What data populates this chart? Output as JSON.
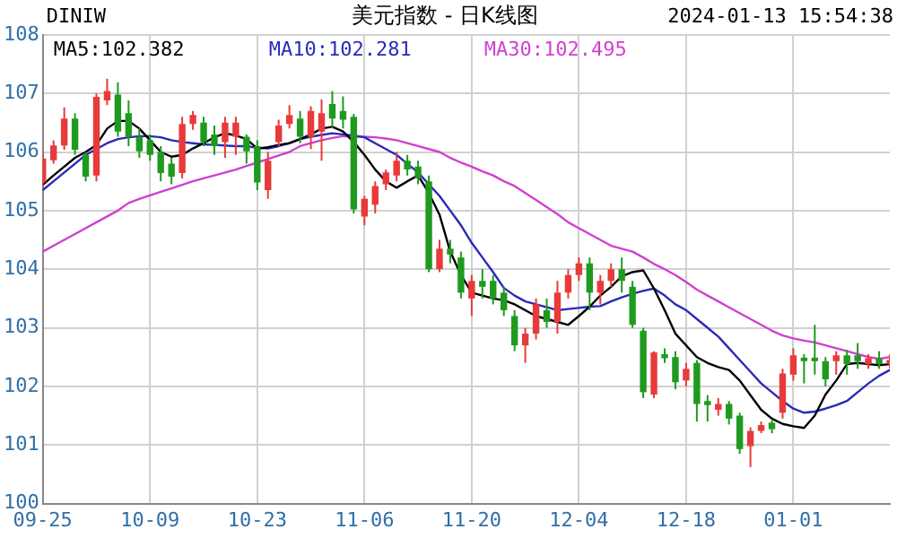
{
  "chart_data": {
    "type": "candlestick",
    "title": "美元指数 - 日K线图",
    "annotations": [
      "DINIW",
      "2024-01-13 15:54:38"
    ],
    "categories": [
      "09-25",
      null,
      null,
      null,
      null,
      null,
      null,
      null,
      null,
      null,
      "10-09",
      null,
      null,
      null,
      null,
      null,
      null,
      null,
      null,
      null,
      "10-23",
      null,
      null,
      null,
      null,
      null,
      null,
      null,
      null,
      null,
      "11-06",
      null,
      null,
      null,
      null,
      null,
      null,
      null,
      null,
      null,
      "11-20",
      null,
      null,
      null,
      null,
      null,
      null,
      null,
      null,
      null,
      "12-04",
      null,
      null,
      null,
      null,
      null,
      null,
      null,
      null,
      null,
      "12-18",
      null,
      null,
      null,
      null,
      null,
      null,
      null,
      null,
      null,
      "01-01",
      null,
      null,
      null,
      null,
      null,
      null,
      null,
      null,
      null
    ],
    "ohlc": [
      [
        105.48,
        106.01,
        105.39,
        105.89
      ],
      [
        105.86,
        106.2,
        105.8,
        106.11
      ],
      [
        106.11,
        106.76,
        106.04,
        106.57
      ],
      [
        106.57,
        106.66,
        105.95,
        106.04
      ],
      [
        105.95,
        106.0,
        105.5,
        105.58
      ],
      [
        105.6,
        107.0,
        105.5,
        106.94
      ],
      [
        106.88,
        107.25,
        106.8,
        107.04
      ],
      [
        106.98,
        107.19,
        106.26,
        106.35
      ],
      [
        106.66,
        106.88,
        106.1,
        106.26
      ],
      [
        106.26,
        106.4,
        105.9,
        106.01
      ],
      [
        106.2,
        106.3,
        105.85,
        105.95
      ],
      [
        106.0,
        106.1,
        105.5,
        105.64
      ],
      [
        105.8,
        105.9,
        105.45,
        105.58
      ],
      [
        105.64,
        106.6,
        105.55,
        106.48
      ],
      [
        106.48,
        106.7,
        106.38,
        106.63
      ],
      [
        106.5,
        106.6,
        106.1,
        106.17
      ],
      [
        106.3,
        106.45,
        105.95,
        106.1
      ],
      [
        106.17,
        106.6,
        105.9,
        106.5
      ],
      [
        106.26,
        106.6,
        105.95,
        106.5
      ],
      [
        106.26,
        106.3,
        105.8,
        106.01
      ],
      [
        106.1,
        106.2,
        105.35,
        105.48
      ],
      [
        105.35,
        106.0,
        105.2,
        105.85
      ],
      [
        106.17,
        106.55,
        106.1,
        106.45
      ],
      [
        106.48,
        106.8,
        106.4,
        106.63
      ],
      [
        106.57,
        106.7,
        106.15,
        106.26
      ],
      [
        106.26,
        106.78,
        106.05,
        106.7
      ],
      [
        106.35,
        106.9,
        105.85,
        106.66
      ],
      [
        106.82,
        107.04,
        106.4,
        106.57
      ],
      [
        106.7,
        106.95,
        106.4,
        106.55
      ],
      [
        106.6,
        106.65,
        104.95,
        105.02
      ],
      [
        104.9,
        105.25,
        104.75,
        105.2
      ],
      [
        105.1,
        105.5,
        104.95,
        105.42
      ],
      [
        105.45,
        105.7,
        105.35,
        105.65
      ],
      [
        105.6,
        106.0,
        105.5,
        105.85
      ],
      [
        105.85,
        105.95,
        105.6,
        105.7
      ],
      [
        105.75,
        105.85,
        105.45,
        105.55
      ],
      [
        105.5,
        105.6,
        103.95,
        104.0
      ],
      [
        104.0,
        104.5,
        103.95,
        104.35
      ],
      [
        104.35,
        104.5,
        104.1,
        104.25
      ],
      [
        104.2,
        104.3,
        103.5,
        103.6
      ],
      [
        103.5,
        103.9,
        103.2,
        103.8
      ],
      [
        103.8,
        104.0,
        103.5,
        103.7
      ],
      [
        103.8,
        103.9,
        103.4,
        103.5
      ],
      [
        103.6,
        103.7,
        103.2,
        103.3
      ],
      [
        103.2,
        103.3,
        102.6,
        102.7
      ],
      [
        102.7,
        103.0,
        102.4,
        102.9
      ],
      [
        102.9,
        103.5,
        102.8,
        103.4
      ],
      [
        103.3,
        103.5,
        103.0,
        103.1
      ],
      [
        103.1,
        103.8,
        102.9,
        103.6
      ],
      [
        103.6,
        104.0,
        103.5,
        103.9
      ],
      [
        103.9,
        104.2,
        103.8,
        104.1
      ],
      [
        104.1,
        104.2,
        103.3,
        103.6
      ],
      [
        103.6,
        103.9,
        103.4,
        103.8
      ],
      [
        103.8,
        104.1,
        103.7,
        104.0
      ],
      [
        104.0,
        104.2,
        103.6,
        103.8
      ],
      [
        103.7,
        103.8,
        103.0,
        103.05
      ],
      [
        102.95,
        103.0,
        101.8,
        101.9
      ],
      [
        101.86,
        102.6,
        101.8,
        102.58
      ],
      [
        102.55,
        102.65,
        102.4,
        102.48
      ],
      [
        102.5,
        102.6,
        101.95,
        102.07
      ],
      [
        102.1,
        102.4,
        102.0,
        102.3
      ],
      [
        102.4,
        102.45,
        101.4,
        101.7
      ],
      [
        101.75,
        101.85,
        101.4,
        101.68
      ],
      [
        101.6,
        101.8,
        101.5,
        101.7
      ],
      [
        101.7,
        101.75,
        101.35,
        101.45
      ],
      [
        101.5,
        101.55,
        100.85,
        100.93
      ],
      [
        100.98,
        101.3,
        100.62,
        101.24
      ],
      [
        101.24,
        101.4,
        101.2,
        101.34
      ],
      [
        101.38,
        101.42,
        101.2,
        101.27
      ],
      [
        101.55,
        102.3,
        101.45,
        102.22
      ],
      [
        102.2,
        102.65,
        102.1,
        102.53
      ],
      [
        102.49,
        102.55,
        102.05,
        102.43
      ],
      [
        102.49,
        103.05,
        102.2,
        102.43
      ],
      [
        102.43,
        102.5,
        102.0,
        102.12
      ],
      [
        102.43,
        102.6,
        102.2,
        102.53
      ],
      [
        102.53,
        102.62,
        102.2,
        102.38
      ],
      [
        102.53,
        102.74,
        102.3,
        102.43
      ],
      [
        102.38,
        102.55,
        102.3,
        102.48
      ],
      [
        102.48,
        102.6,
        102.3,
        102.38
      ],
      [
        102.38,
        102.55,
        102.3,
        102.45
      ]
    ],
    "series": [
      {
        "name": "MA5:102.382",
        "type": "line",
        "color": "#000000",
        "values": [
          105.44,
          105.6,
          105.75,
          105.9,
          106.0,
          106.12,
          106.4,
          106.53,
          106.53,
          106.4,
          106.2,
          106.0,
          105.92,
          105.95,
          106.06,
          106.15,
          106.25,
          106.32,
          106.28,
          106.22,
          106.06,
          106.08,
          106.12,
          106.15,
          106.22,
          106.3,
          106.4,
          106.43,
          106.35,
          106.17,
          105.95,
          105.7,
          105.5,
          105.39,
          105.5,
          105.6,
          105.3,
          104.93,
          104.3,
          103.9,
          103.6,
          103.55,
          103.5,
          103.47,
          103.4,
          103.3,
          103.2,
          103.15,
          103.1,
          103.05,
          103.2,
          103.36,
          103.55,
          103.7,
          103.88,
          103.95,
          103.98,
          103.67,
          103.3,
          102.9,
          102.7,
          102.5,
          102.4,
          102.33,
          102.28,
          102.1,
          101.85,
          101.6,
          101.45,
          101.36,
          101.32,
          101.29,
          101.5,
          101.86,
          102.1,
          102.38,
          102.4,
          102.38,
          102.36,
          102.38
        ]
      },
      {
        "name": "MA10:102.281",
        "type": "line",
        "color": "#2a2ab8",
        "values": [
          105.35,
          105.5,
          105.65,
          105.8,
          105.95,
          106.05,
          106.15,
          106.22,
          106.25,
          106.27,
          106.27,
          106.25,
          106.2,
          106.17,
          106.15,
          106.13,
          106.12,
          106.11,
          106.1,
          106.1,
          106.07,
          106.06,
          106.1,
          106.15,
          106.22,
          106.26,
          106.29,
          106.32,
          106.3,
          106.28,
          106.25,
          106.15,
          106.05,
          105.95,
          105.8,
          105.65,
          105.45,
          105.25,
          105.0,
          104.75,
          104.45,
          104.2,
          103.95,
          103.68,
          103.55,
          103.45,
          103.4,
          103.35,
          103.3,
          103.32,
          103.34,
          103.36,
          103.37,
          103.45,
          103.52,
          103.58,
          103.63,
          103.67,
          103.55,
          103.4,
          103.3,
          103.15,
          103.0,
          102.85,
          102.65,
          102.45,
          102.25,
          102.05,
          101.9,
          101.75,
          101.62,
          101.55,
          101.57,
          101.62,
          101.68,
          101.75,
          101.9,
          102.05,
          102.18,
          102.28
        ]
      },
      {
        "name": "MA30:102.495",
        "type": "line",
        "color": "#d040d0",
        "values": [
          104.3,
          104.4,
          104.5,
          104.6,
          104.7,
          104.8,
          104.9,
          105.0,
          105.13,
          105.2,
          105.26,
          105.32,
          105.38,
          105.44,
          105.5,
          105.55,
          105.6,
          105.65,
          105.7,
          105.76,
          105.82,
          105.88,
          105.94,
          106.0,
          106.1,
          106.15,
          106.2,
          106.24,
          106.27,
          null,
          106.26,
          106.25,
          106.23,
          106.2,
          106.15,
          106.1,
          106.05,
          106.0,
          105.9,
          105.82,
          105.75,
          105.67,
          105.6,
          105.5,
          105.42,
          105.3,
          105.18,
          105.06,
          104.94,
          104.8,
          104.7,
          104.6,
          104.5,
          104.4,
          104.35,
          104.3,
          104.2,
          104.09,
          104.0,
          103.9,
          103.78,
          103.65,
          103.55,
          103.45,
          103.35,
          103.25,
          103.15,
          103.05,
          102.95,
          102.87,
          102.82,
          102.78,
          102.75,
          102.7,
          102.65,
          102.6,
          102.55,
          102.5,
          102.47,
          102.5
        ]
      }
    ],
    "ylim": [
      100,
      108
    ],
    "yticks": [
      100,
      101,
      102,
      103,
      104,
      105,
      106,
      107,
      108
    ],
    "grid": true,
    "marker": "none",
    "line_style": "solid"
  }
}
